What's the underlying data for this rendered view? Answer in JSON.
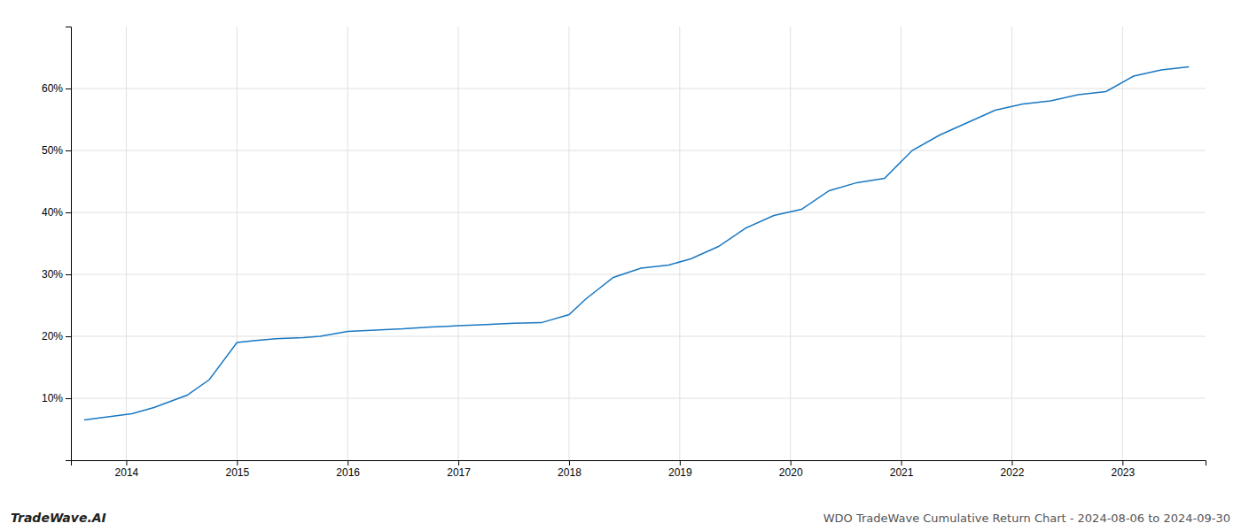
{
  "chart_data": {
    "type": "line",
    "title": "WDO TradeWave Cumulative Return Chart - 2024-08-06 to 2024-09-30",
    "annotations": [
      {
        "text": "TradeWave.AI"
      }
    ],
    "x": [
      2013.62,
      2014.05,
      2014.25,
      2014.55,
      2014.75,
      2015.0,
      2015.15,
      2015.35,
      2015.6,
      2015.75,
      2016.0,
      2016.25,
      2016.5,
      2016.75,
      2017.0,
      2017.25,
      2017.5,
      2017.75,
      2018.0,
      2018.15,
      2018.4,
      2018.65,
      2018.9,
      2019.1,
      2019.35,
      2019.6,
      2019.85,
      2020.1,
      2020.35,
      2020.6,
      2020.85,
      2021.1,
      2021.35,
      2021.6,
      2021.85,
      2022.1,
      2022.35,
      2022.6,
      2022.85,
      2023.1,
      2023.35,
      2023.6
    ],
    "values": [
      6.5,
      7.5,
      8.5,
      10.5,
      13.0,
      19.0,
      19.3,
      19.6,
      19.8,
      20.0,
      20.8,
      21.0,
      21.2,
      21.5,
      21.7,
      21.9,
      22.1,
      22.2,
      23.5,
      26.0,
      29.5,
      31.0,
      31.5,
      32.5,
      34.5,
      37.5,
      39.5,
      40.5,
      43.5,
      44.8,
      45.5,
      50.0,
      52.5,
      54.5,
      56.5,
      57.5,
      58.0,
      59.0,
      59.5,
      62.0,
      63.0,
      63.5
    ],
    "color": "#1a78c2",
    "xlim": [
      2013.5,
      2023.75
    ],
    "xticks": [
      2014,
      2015,
      2016,
      2017,
      2018,
      2019,
      2020,
      2021,
      2022,
      2023
    ],
    "ylim": [
      0,
      70
    ],
    "yticks": [
      {
        "value": 10,
        "label": "10%"
      },
      {
        "value": 20,
        "label": "20%"
      },
      {
        "value": 30,
        "label": "30%"
      },
      {
        "value": 40,
        "label": "40%"
      },
      {
        "value": 50,
        "label": "50%"
      },
      {
        "value": 60,
        "label": "60%"
      }
    ],
    "grid": true
  }
}
